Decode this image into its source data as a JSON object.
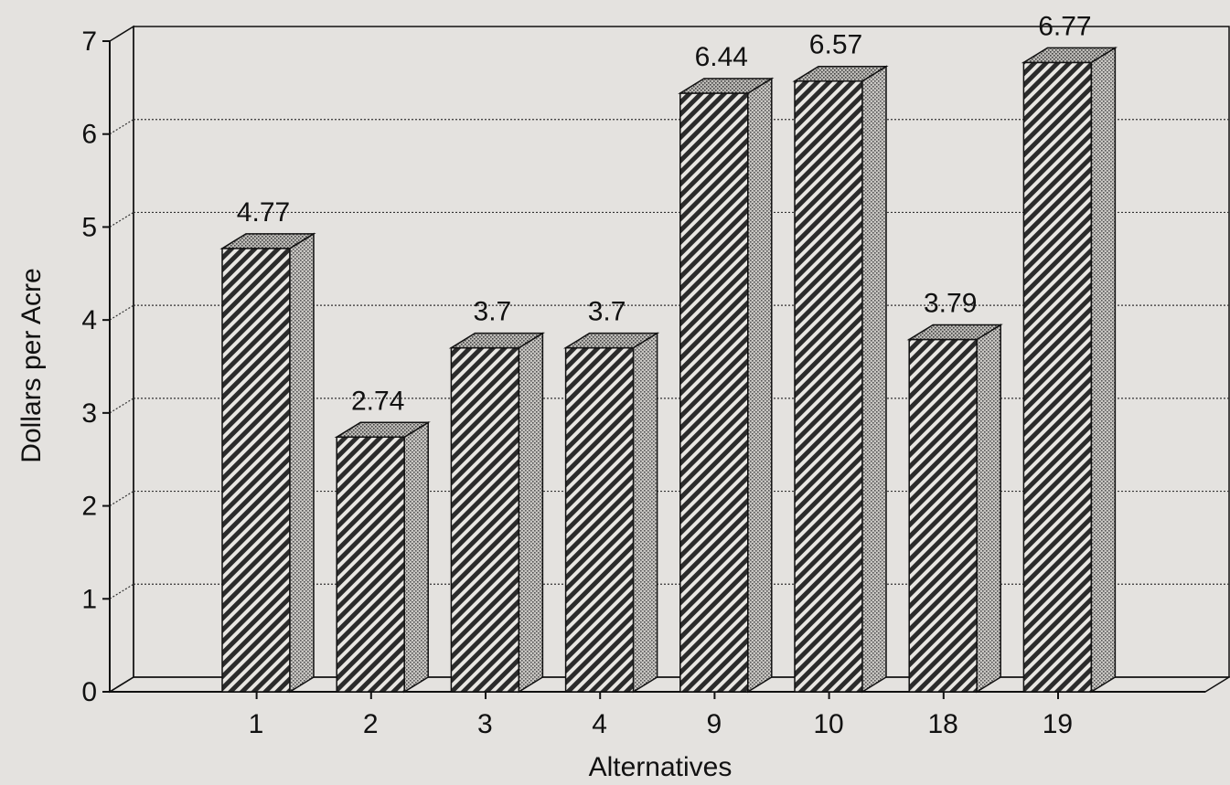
{
  "chart_data": {
    "type": "bar",
    "title": "",
    "xlabel": "Alternatives",
    "ylabel": "Dollars per Acre",
    "categories": [
      "1",
      "2",
      "3",
      "4",
      "9",
      "10",
      "18",
      "19"
    ],
    "values": [
      4.77,
      2.74,
      3.7,
      3.7,
      6.44,
      6.57,
      3.79,
      6.77
    ],
    "data_labels": [
      "4.77",
      "2.74",
      "3.7",
      "3.7",
      "6.44",
      "6.57",
      "3.79",
      "6.77"
    ],
    "y_ticks": [
      "0",
      "1",
      "2",
      "3",
      "4",
      "5",
      "6",
      "7"
    ],
    "ylim": [
      0,
      7
    ],
    "grid": true,
    "style": "3d-bar",
    "colors": {
      "background": "#e4e2df",
      "bar_front": "#777777",
      "bar_side": "#b4b2ae",
      "bar_top": "#a9a7a3",
      "axis": "#111111",
      "grid": "#333333"
    }
  }
}
